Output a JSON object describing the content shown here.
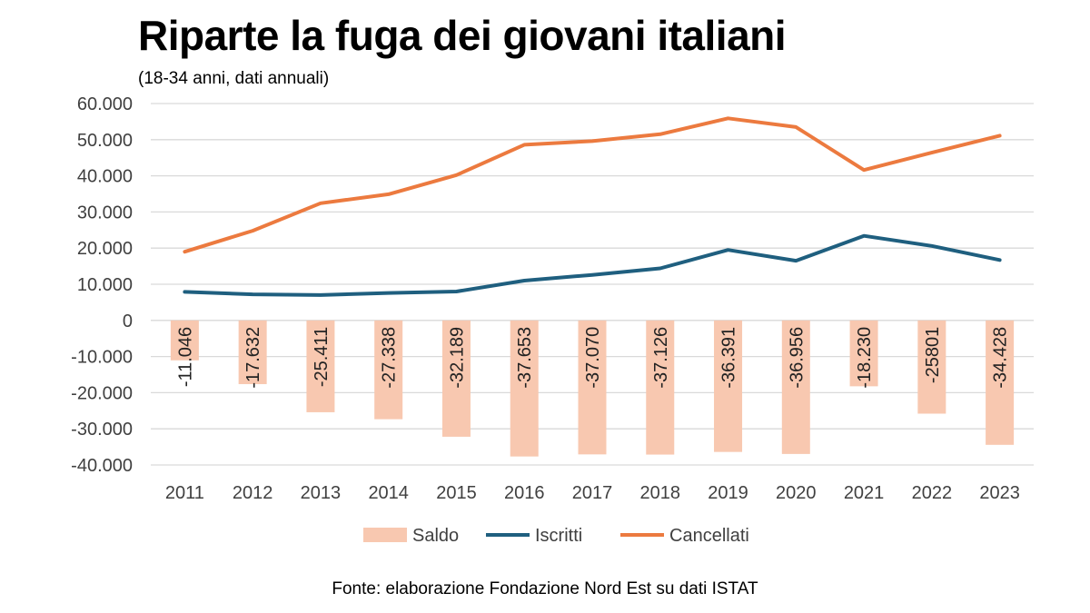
{
  "chart_data": {
    "type": "bar+line",
    "title": "Riparte la fuga dei giovani italiani",
    "subtitle": "(18-34 anni, dati annuali)",
    "source": "Fonte: elaborazione Fondazione Nord Est su dati ISTAT",
    "categories": [
      "2011",
      "2012",
      "2013",
      "2014",
      "2015",
      "2016",
      "2017",
      "2018",
      "2019",
      "2020",
      "2021",
      "2022",
      "2023"
    ],
    "ylim": [
      -40000,
      60000
    ],
    "yticks": [
      {
        "value": 60000,
        "label": "60.000"
      },
      {
        "value": 50000,
        "label": "50.000"
      },
      {
        "value": 40000,
        "label": "40.000"
      },
      {
        "value": 30000,
        "label": "30.000"
      },
      {
        "value": 20000,
        "label": "20.000"
      },
      {
        "value": 10000,
        "label": "10.000"
      },
      {
        "value": 0,
        "label": "0"
      },
      {
        "value": -10000,
        "label": "-10.000"
      },
      {
        "value": -20000,
        "label": "-20.000"
      },
      {
        "value": -30000,
        "label": "-30.000"
      },
      {
        "value": -40000,
        "label": "-40.000"
      }
    ],
    "grid": true,
    "legend_position": "bottom",
    "series": [
      {
        "name": "Saldo",
        "kind": "bar",
        "color": "#f8c8b0",
        "values": [
          -11046,
          -17632,
          -25411,
          -27338,
          -32189,
          -37653,
          -37070,
          -37126,
          -36391,
          -36956,
          -18230,
          -25801,
          -34428
        ],
        "labels": [
          "-11.046",
          "-17.632",
          "-25.411",
          "-27.338",
          "-32.189",
          "-37.653",
          "-37.070",
          "-37.126",
          "-36.391",
          "-36.956",
          "-18.230",
          "-25801",
          "-34.428"
        ]
      },
      {
        "name": "Iscritti",
        "kind": "line",
        "color": "#1f5f7f",
        "values": [
          7900,
          7200,
          7000,
          7600,
          8000,
          11000,
          12600,
          14400,
          19500,
          16500,
          23400,
          20600,
          16700
        ]
      },
      {
        "name": "Cancellati",
        "kind": "line",
        "color": "#ec7a3f",
        "values": [
          19000,
          24800,
          32400,
          34900,
          40200,
          48600,
          49600,
          51500,
          55900,
          53500,
          41600,
          46400,
          51100
        ]
      }
    ]
  }
}
